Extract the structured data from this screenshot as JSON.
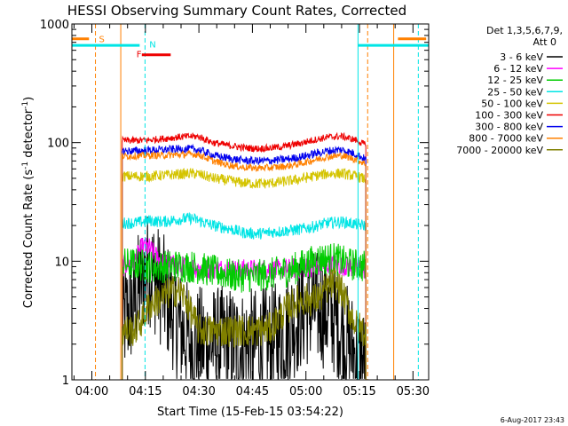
{
  "header": {
    "title": "HESSI Observing Summary Count Rates, Corrected",
    "footer_date": "6-Aug-2017 23:43"
  },
  "legend": {
    "detector_line1": "Det 1,3,5,6,7,9,",
    "detector_line2": "Att 0",
    "entries": [
      {
        "label": "3 - 6 keV",
        "color": "#000000"
      },
      {
        "label": "6 - 12 keV",
        "color": "#ff00ff"
      },
      {
        "label": "12 - 25 keV",
        "color": "#00cc00"
      },
      {
        "label": "25 - 50 keV",
        "color": "#00e5e5"
      },
      {
        "label": "50 - 100 keV",
        "color": "#d4c400"
      },
      {
        "label": "100 - 300 keV",
        "color": "#ee0000"
      },
      {
        "label": "300 - 800 keV",
        "color": "#0000ee"
      },
      {
        "label": "800 - 7000 keV",
        "color": "#ff8000"
      },
      {
        "label": "7000 - 20000 keV",
        "color": "#808000"
      }
    ]
  },
  "chart_data": {
    "type": "line",
    "title": "HESSI Observing Summary Count Rates, Corrected",
    "xlabel": "Start Time (15-Feb-15 03:54:22)",
    "ylabel_main": "Corrected Count Rate (s",
    "ylabel_sup1": "-1",
    "ylabel_mid": " detector",
    "ylabel_sup2": "-1",
    "ylabel_end": ")",
    "ylog": true,
    "ylim": [
      1,
      1000
    ],
    "xlim_min": [
      234.4,
      334.4
    ],
    "yticks": [
      {
        "value": 1,
        "label": "1"
      },
      {
        "value": 10,
        "label": "10"
      },
      {
        "value": 100,
        "label": "100"
      },
      {
        "value": 1000,
        "label": "1000"
      }
    ],
    "xticks": [
      {
        "value": 240,
        "label": "04:00"
      },
      {
        "value": 255,
        "label": "04:15"
      },
      {
        "value": 270,
        "label": "04:30"
      },
      {
        "value": 285,
        "label": "04:45"
      },
      {
        "value": 300,
        "label": "05:00"
      },
      {
        "value": 315,
        "label": "05:15"
      },
      {
        "value": 330,
        "label": "05:30"
      }
    ],
    "data_window": [
      248.5,
      316.8
    ],
    "series": [
      {
        "name": "3 - 6 keV",
        "color": "#000000",
        "points": [
          [
            248.5,
            3
          ],
          [
            252,
            4.5
          ],
          [
            254,
            7
          ],
          [
            256,
            9
          ],
          [
            258,
            7
          ],
          [
            260,
            5.5
          ],
          [
            262,
            4.2
          ],
          [
            264,
            3
          ],
          [
            266,
            2.4
          ],
          [
            268,
            2
          ],
          [
            270,
            2
          ],
          [
            274,
            2
          ],
          [
            278,
            2
          ],
          [
            282,
            1.9
          ],
          [
            286,
            1.9
          ],
          [
            290,
            2
          ],
          [
            292,
            2.2
          ],
          [
            294,
            2.5
          ],
          [
            296,
            3
          ],
          [
            300,
            4
          ],
          [
            304,
            4
          ],
          [
            308,
            3.4
          ],
          [
            311,
            2.2
          ],
          [
            314,
            1.6
          ],
          [
            316.8,
            1.3
          ]
        ]
      },
      {
        "name": "6 - 12 keV",
        "color": "#ff00ff",
        "points": [
          [
            248.5,
            9
          ],
          [
            252,
            10
          ],
          [
            254,
            13
          ],
          [
            256,
            13
          ],
          [
            258,
            11
          ],
          [
            260,
            9.5
          ],
          [
            266,
            9
          ],
          [
            272,
            8.7
          ],
          [
            280,
            8.5
          ],
          [
            286,
            8.5
          ],
          [
            292,
            8.5
          ],
          [
            298,
            8.7
          ],
          [
            302,
            9
          ],
          [
            308,
            9.5
          ],
          [
            312,
            9
          ],
          [
            316.8,
            8.6
          ]
        ]
      },
      {
        "name": "12 - 25 keV",
        "color": "#00cc00",
        "points": [
          [
            248.5,
            9.5
          ],
          [
            252,
            9.5
          ],
          [
            256,
            9
          ],
          [
            260,
            9
          ],
          [
            264,
            9.2
          ],
          [
            268,
            9
          ],
          [
            272,
            8.5
          ],
          [
            276,
            8
          ],
          [
            280,
            7.5
          ],
          [
            286,
            7.5
          ],
          [
            292,
            8
          ],
          [
            296,
            8.5
          ],
          [
            300,
            9.5
          ],
          [
            304,
            10.5
          ],
          [
            308,
            10.5
          ],
          [
            312,
            9.5
          ],
          [
            316.8,
            9
          ]
        ]
      },
      {
        "name": "25 - 50 keV",
        "color": "#00e5e5",
        "points": [
          [
            248.5,
            21
          ],
          [
            252,
            21
          ],
          [
            256,
            22
          ],
          [
            260,
            21.5
          ],
          [
            264,
            22.5
          ],
          [
            268,
            23
          ],
          [
            270,
            22
          ],
          [
            274,
            20
          ],
          [
            278,
            19
          ],
          [
            282,
            17.5
          ],
          [
            286,
            17
          ],
          [
            290,
            17.5
          ],
          [
            294,
            18
          ],
          [
            298,
            18.5
          ],
          [
            302,
            19.5
          ],
          [
            306,
            21
          ],
          [
            310,
            21.5
          ],
          [
            314,
            20.5
          ],
          [
            316.8,
            20
          ]
        ]
      },
      {
        "name": "50 - 100 keV",
        "color": "#d4c400",
        "points": [
          [
            248.5,
            52
          ],
          [
            252,
            52
          ],
          [
            256,
            52
          ],
          [
            260,
            53
          ],
          [
            264,
            54
          ],
          [
            268,
            55
          ],
          [
            270,
            54
          ],
          [
            274,
            50
          ],
          [
            278,
            48
          ],
          [
            282,
            46
          ],
          [
            286,
            45
          ],
          [
            290,
            45.5
          ],
          [
            294,
            47
          ],
          [
            298,
            49
          ],
          [
            302,
            52
          ],
          [
            306,
            54.5
          ],
          [
            310,
            55
          ],
          [
            314,
            52
          ],
          [
            316.8,
            49
          ]
        ]
      },
      {
        "name": "100 - 300 keV",
        "color": "#ee0000",
        "points": [
          [
            248.5,
            104
          ],
          [
            252,
            104
          ],
          [
            256,
            105
          ],
          [
            260,
            108
          ],
          [
            264,
            111
          ],
          [
            268,
            113
          ],
          [
            270,
            112
          ],
          [
            274,
            100
          ],
          [
            278,
            95
          ],
          [
            282,
            91
          ],
          [
            286,
            89
          ],
          [
            290,
            90
          ],
          [
            294,
            93
          ],
          [
            298,
            98
          ],
          [
            302,
            105
          ],
          [
            306,
            111
          ],
          [
            310,
            113
          ],
          [
            314,
            105
          ],
          [
            316.8,
            95
          ]
        ]
      },
      {
        "name": "300 - 800 keV",
        "color": "#0000ee",
        "points": [
          [
            248.5,
            85
          ],
          [
            252,
            85
          ],
          [
            256,
            86
          ],
          [
            260,
            87
          ],
          [
            264,
            88
          ],
          [
            268,
            88
          ],
          [
            270,
            87
          ],
          [
            274,
            78
          ],
          [
            278,
            74
          ],
          [
            282,
            71
          ],
          [
            286,
            70
          ],
          [
            290,
            70.5
          ],
          [
            294,
            72
          ],
          [
            298,
            75
          ],
          [
            302,
            80
          ],
          [
            306,
            85
          ],
          [
            310,
            87
          ],
          [
            314,
            80
          ],
          [
            316.8,
            72
          ]
        ]
      },
      {
        "name": "800 - 7000 keV",
        "color": "#ff8000",
        "points": [
          [
            248.5,
            77
          ],
          [
            252,
            77
          ],
          [
            256,
            78
          ],
          [
            260,
            78
          ],
          [
            264,
            79
          ],
          [
            268,
            80
          ],
          [
            270,
            79
          ],
          [
            274,
            70
          ],
          [
            278,
            65
          ],
          [
            282,
            62
          ],
          [
            286,
            61
          ],
          [
            290,
            61.5
          ],
          [
            294,
            63
          ],
          [
            298,
            66
          ],
          [
            302,
            71
          ],
          [
            306,
            76
          ],
          [
            310,
            78
          ],
          [
            314,
            72
          ],
          [
            316.8,
            66
          ]
        ]
      },
      {
        "name": "7000 - 20000 keV",
        "color": "#808000",
        "points": [
          [
            248.5,
            2.6
          ],
          [
            252,
            2.6
          ],
          [
            254,
            3.2
          ],
          [
            256,
            4.2
          ],
          [
            258,
            4.6
          ],
          [
            260,
            5
          ],
          [
            262,
            5.5
          ],
          [
            264,
            5.7
          ],
          [
            266,
            5
          ],
          [
            268,
            3.6
          ],
          [
            270,
            2.6
          ],
          [
            274,
            2.6
          ],
          [
            280,
            2.6
          ],
          [
            286,
            2.6
          ],
          [
            290,
            2.7
          ],
          [
            292,
            3.2
          ],
          [
            294,
            3.8
          ],
          [
            296,
            4.3
          ],
          [
            298,
            4.7
          ],
          [
            300,
            4.8
          ],
          [
            302,
            4.7
          ],
          [
            304,
            5
          ],
          [
            306,
            6
          ],
          [
            308,
            6.7
          ],
          [
            310,
            5.6
          ],
          [
            312,
            3.9
          ],
          [
            314,
            2.9
          ],
          [
            316.8,
            2.5
          ]
        ]
      }
    ],
    "segments": [
      {
        "name": "saa-bar",
        "label": "",
        "color": "#ff8000",
        "value": 750,
        "x0": 234.4,
        "x1": 239.2
      },
      {
        "name": "saa-bar-late",
        "label": "",
        "color": "#ff8000",
        "value": 750,
        "x0": 325.8,
        "x1": 333.7
      },
      {
        "name": "night-bar",
        "label": "",
        "color": "#00e5e5",
        "value": 660,
        "x0": 234.4,
        "x1": 253.4
      },
      {
        "name": "night-bar-late",
        "label": "",
        "color": "#00e5e5",
        "value": 660,
        "x0": 314.6,
        "x1": 334.4
      },
      {
        "name": "flare-bar",
        "label": "",
        "color": "#ee0000",
        "value": 550,
        "x0": 254.0,
        "x1": 262.1
      }
    ],
    "segment_labels": [
      {
        "name": "saa-label",
        "text": "S",
        "color": "#ff8000",
        "value": 755,
        "x": 242.0
      },
      {
        "name": "night-label",
        "text": "N",
        "color": "#00e5e5",
        "value": 680,
        "x": 256.1
      },
      {
        "name": "flare-label",
        "text": "F",
        "color": "#ee0000",
        "value": 560,
        "x": 252.5
      }
    ],
    "vlines": [
      {
        "name": "saa-start-line",
        "color": "#ff8000",
        "x": 241.0,
        "dashed": true
      },
      {
        "name": "saa-end-line",
        "color": "#ff8000",
        "x": 248.1,
        "dashed": false
      },
      {
        "name": "night-end-line",
        "color": "#00e5e5",
        "x": 254.9,
        "dashed": true
      },
      {
        "name": "night-start-line",
        "color": "#00e5e5",
        "x": 314.6,
        "dashed": false
      },
      {
        "name": "saa2-start-line",
        "color": "#ff8000",
        "x": 317.3,
        "dashed": true
      },
      {
        "name": "saa2-mid-line",
        "color": "#ff8000",
        "x": 324.6,
        "dashed": false
      },
      {
        "name": "night2-end-line",
        "color": "#00e5e5",
        "x": 331.5,
        "dashed": true
      }
    ]
  }
}
